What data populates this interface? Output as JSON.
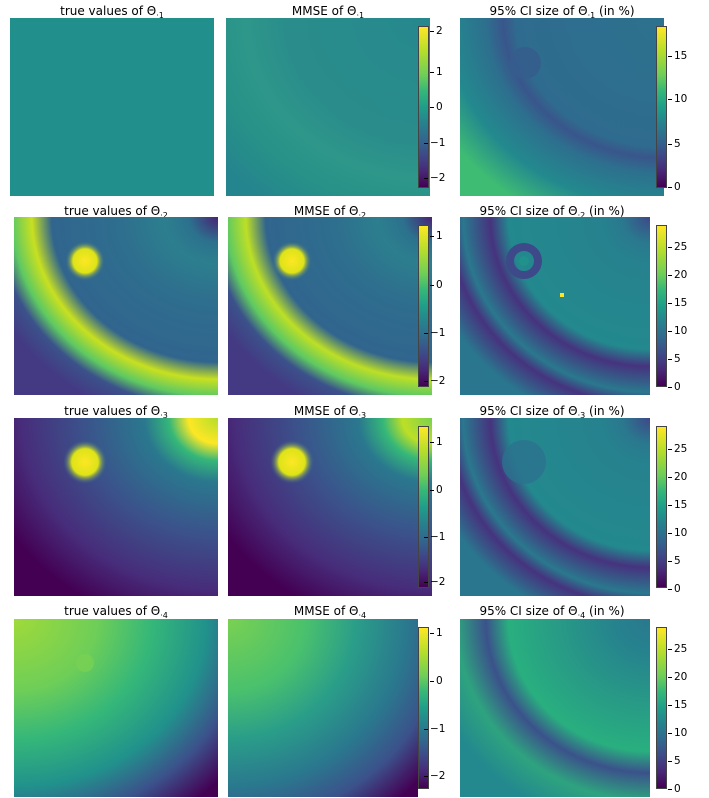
{
  "figure": {
    "rows": [
      {
        "titles": {
          "true": "true values of Θ",
          "mmse": "MMSE of Θ",
          "ci": "95% CI size of Θ",
          "ci_suffix": " (in %)"
        },
        "sub": "·1",
        "mmse_ticks": [
          "2",
          "1",
          "0",
          "−1",
          "−2"
        ],
        "ci_ticks": [
          "15",
          "10",
          "5",
          "0"
        ]
      },
      {
        "titles": {
          "true": "true values of Θ",
          "mmse": "MMSE of Θ",
          "ci": "95% CI size of Θ",
          "ci_suffix": " (in %)"
        },
        "sub": "·2",
        "mmse_ticks": [
          "1",
          "0",
          "−1",
          "−2"
        ],
        "ci_ticks": [
          "25",
          "20",
          "15",
          "10",
          "5",
          "0"
        ]
      },
      {
        "titles": {
          "true": "true values of Θ",
          "mmse": "MMSE of Θ",
          "ci": "95% CI size of Θ",
          "ci_suffix": " (in %)"
        },
        "sub": "·3",
        "mmse_ticks": [
          "1",
          "0",
          "−1",
          "−2"
        ],
        "ci_ticks": [
          "25",
          "20",
          "15",
          "10",
          "5",
          "0"
        ]
      },
      {
        "titles": {
          "true": "true values of Θ",
          "mmse": "MMSE of Θ",
          "ci": "95% CI size of Θ",
          "ci_suffix": " (in %)"
        },
        "sub": "·4",
        "mmse_ticks": [
          "1",
          "0",
          "−1",
          "−2"
        ],
        "ci_ticks": [
          "25",
          "20",
          "15",
          "10",
          "5",
          "0"
        ]
      }
    ]
  },
  "chart_data": {
    "type": "heatmap",
    "colormap": "viridis",
    "panels": [
      {
        "row": 1,
        "title": "true values of Θ·1",
        "colorbar": null
      },
      {
        "row": 1,
        "title": "MMSE of Θ·1",
        "colorbar": {
          "ticks": [
            2,
            1,
            0,
            -1,
            -2
          ],
          "range": [
            -2.3,
            2.3
          ]
        }
      },
      {
        "row": 1,
        "title": "95% CI size of Θ·1 (in %)",
        "colorbar": {
          "ticks": [
            15,
            10,
            5,
            0
          ],
          "range": [
            0,
            18
          ]
        }
      },
      {
        "row": 2,
        "title": "true values of Θ·2",
        "colorbar": null
      },
      {
        "row": 2,
        "title": "MMSE of Θ·2",
        "colorbar": {
          "ticks": [
            1,
            0,
            -1,
            -2
          ],
          "range": [
            -2.3,
            1.3
          ]
        }
      },
      {
        "row": 2,
        "title": "95% CI size of Θ·2 (in %)",
        "colorbar": {
          "ticks": [
            25,
            20,
            15,
            10,
            5,
            0
          ],
          "range": [
            0,
            29
          ]
        }
      },
      {
        "row": 3,
        "title": "true values of Θ·3",
        "colorbar": null
      },
      {
        "row": 3,
        "title": "MMSE of Θ·3",
        "colorbar": {
          "ticks": [
            1,
            0,
            -1,
            -2
          ],
          "range": [
            -2.2,
            1.5
          ]
        }
      },
      {
        "row": 3,
        "title": "95% CI size of Θ·3 (in %)",
        "colorbar": {
          "ticks": [
            25,
            20,
            15,
            10,
            5,
            0
          ],
          "range": [
            0,
            29
          ]
        }
      },
      {
        "row": 4,
        "title": "true values of Θ·4",
        "colorbar": null
      },
      {
        "row": 4,
        "title": "MMSE of Θ·4",
        "colorbar": {
          "ticks": [
            1,
            0,
            -1,
            -2
          ],
          "range": [
            -2.3,
            1.2
          ]
        }
      },
      {
        "row": 4,
        "title": "95% CI size of Θ·4 (in %)",
        "colorbar": {
          "ticks": [
            25,
            20,
            15,
            10,
            5,
            0
          ],
          "range": [
            0,
            29
          ]
        }
      }
    ]
  }
}
